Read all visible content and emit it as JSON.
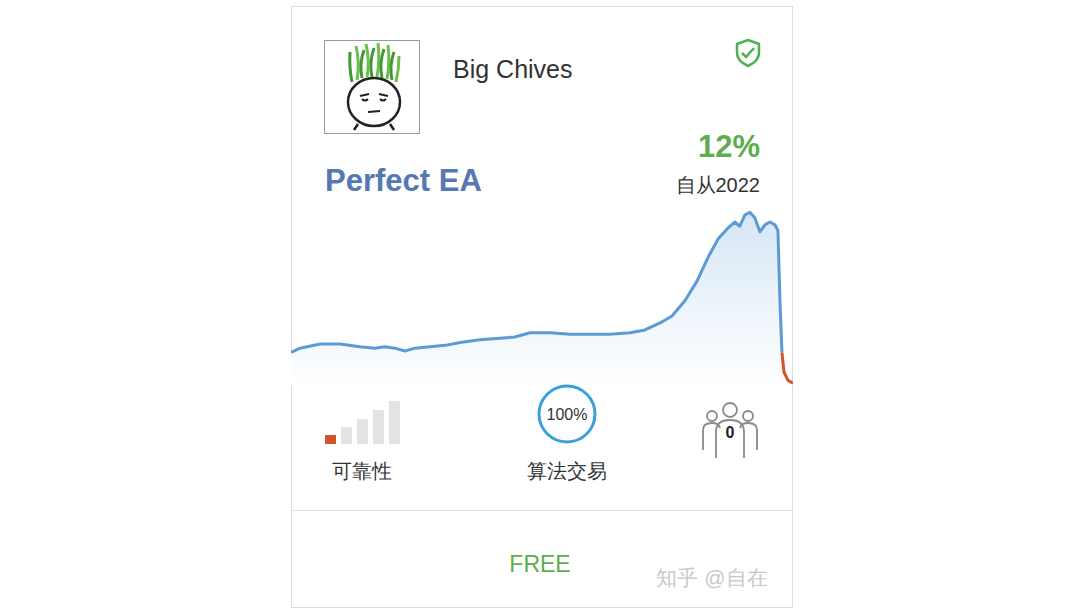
{
  "card": {
    "author": "Big Chives",
    "name": "Perfect EA",
    "growth": "12%",
    "since": "自从2022",
    "reliability_label": "可靠性",
    "reliability_level": 1,
    "algo_trading": "100%",
    "algo_trading_label": "算法交易",
    "subscribers": 0,
    "price": "FREE",
    "watermark": "知乎 @自在"
  },
  "chart_data": {
    "type": "line",
    "x": [
      0,
      1.8,
      5.8,
      9.8,
      13.7,
      16.7,
      18.7,
      20.7,
      22.7,
      24.7,
      27.7,
      30.7,
      33.7,
      37.6,
      41.6,
      44.6,
      47.6,
      51.6,
      55.6,
      59.6,
      63.5,
      67.5,
      70.5,
      73.5,
      75.9,
      78.5,
      80.9,
      83.1,
      85.1,
      87.1,
      88.4,
      89.4,
      90.4,
      91.4,
      92.4,
      93.4,
      94.4,
      95.4,
      96.4,
      97.0,
      97.4,
      97.8,
      98.2,
      99.0,
      100
    ],
    "series": [
      {
        "color": "#5b9bd5",
        "values": [
          0,
          3,
          6,
          6,
          4,
          3,
          4,
          3,
          1,
          3,
          4,
          5,
          7,
          9,
          10,
          11,
          14,
          14,
          13,
          13,
          13,
          14,
          16,
          21,
          26,
          37,
          51,
          68,
          81,
          89,
          93,
          90,
          98,
          100,
          96,
          86,
          91,
          93,
          91,
          87,
          37,
          0,
          null,
          null,
          null
        ]
      },
      {
        "color": "#d0552e",
        "values": [
          null,
          null,
          null,
          null,
          null,
          null,
          null,
          null,
          null,
          null,
          null,
          null,
          null,
          null,
          null,
          null,
          null,
          null,
          null,
          null,
          null,
          null,
          null,
          null,
          null,
          null,
          null,
          null,
          null,
          null,
          null,
          null,
          null,
          null,
          null,
          null,
          null,
          null,
          null,
          null,
          null,
          0,
          -14,
          -20,
          -22
        ]
      }
    ],
    "xlim": [
      0,
      100
    ],
    "ylim": [
      -24,
      108
    ],
    "grid": false,
    "tick_labels": false
  }
}
